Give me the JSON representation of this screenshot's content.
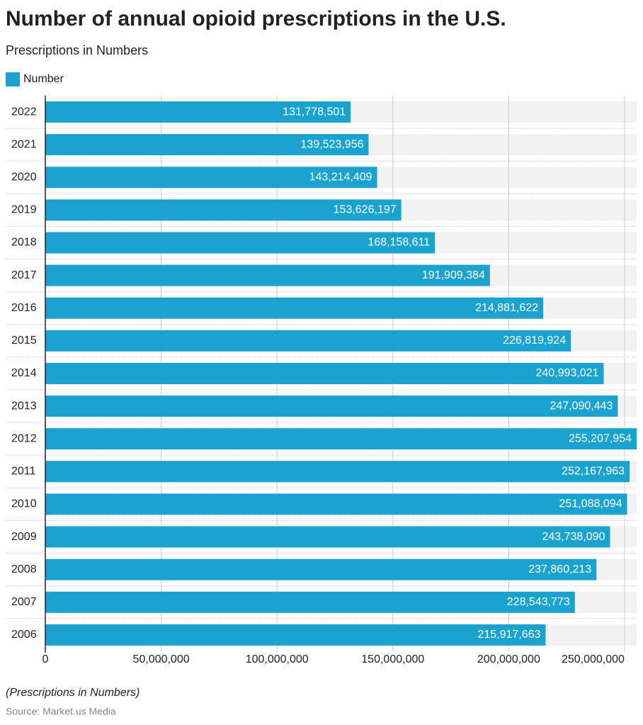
{
  "chart_data": {
    "type": "bar",
    "orientation": "horizontal",
    "title": "Number of annual opioid prescriptions in the U.S.",
    "subtitle": "Prescriptions in Numbers",
    "categories": [
      "2022",
      "2021",
      "2020",
      "2019",
      "2018",
      "2017",
      "2016",
      "2015",
      "2014",
      "2013",
      "2012",
      "2011",
      "2010",
      "2009",
      "2008",
      "2007",
      "2006"
    ],
    "series": [
      {
        "name": "Number",
        "color": "#1ba3cf",
        "values": [
          131778501,
          139523956,
          143214409,
          153626197,
          168158611,
          191909384,
          214881622,
          226819924,
          240993021,
          247090443,
          255207954,
          252167963,
          251088094,
          243738090,
          237860213,
          228543773,
          215917663
        ],
        "value_labels": [
          "131,778,501",
          "139,523,956",
          "143,214,409",
          "153,626,197",
          "168,158,611",
          "191,909,384",
          "214,881,622",
          "226,819,924",
          "240,993,021",
          "247,090,443",
          "255,207,954",
          "252,167,963",
          "251,088,094",
          "243,738,090",
          "237,860,213",
          "228,543,773",
          "215,917,663"
        ]
      }
    ],
    "xlim": [
      0,
      255207954
    ],
    "xticks": [
      0,
      {
        "value": 50000000,
        "label": "50,000,000"
      },
      {
        "value": 100000000,
        "label": "100,000,000"
      },
      {
        "value": 150000000,
        "label": "150,000,000"
      },
      {
        "value": 200000000,
        "label": "200,000,000"
      },
      {
        "value": 250000000,
        "label": "250,000,000"
      }
    ],
    "grid": true,
    "note": "(Prescriptions in Numbers)",
    "source": "Source: Market.us Media"
  }
}
